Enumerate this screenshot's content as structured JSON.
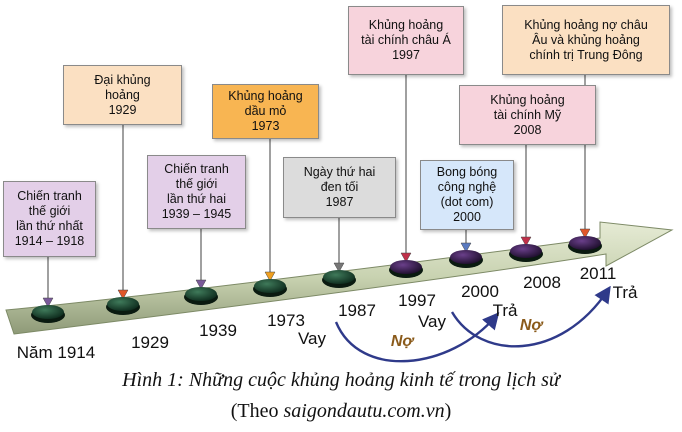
{
  "colors": {
    "purple": "#e3cfe8",
    "peach": "#fbe0c2",
    "orange": "#f8b552",
    "gray": "#dcdcdc",
    "blue": "#d6e7fa",
    "pink": "#f7d3dc",
    "arrow": "#2f3a8a",
    "debt": "#8a5a1a"
  },
  "events": [
    {
      "lines": [
        "Chiến tranh",
        "thế giới",
        "lần thứ nhất",
        "1914 – 1918"
      ],
      "color": "purple",
      "axis_label": "Năm 1914"
    },
    {
      "lines": [
        "Đại khủng",
        "hoảng",
        "1929"
      ],
      "color": "peach",
      "axis_label": "1929"
    },
    {
      "lines": [
        "Chiến tranh",
        "thế giới",
        "lần thứ hai",
        "1939 – 1945"
      ],
      "color": "purple",
      "axis_label": "1939"
    },
    {
      "lines": [
        "Khủng hoảng",
        "dầu mỏ",
        "1973"
      ],
      "color": "orange",
      "axis_label": "1973"
    },
    {
      "lines": [
        "Ngày thứ hai",
        "đen tối",
        "1987"
      ],
      "color": "gray",
      "axis_label": "1987"
    },
    {
      "lines": [
        "Khủng hoảng",
        "tài chính châu Á",
        "1997"
      ],
      "color": "pink",
      "axis_label": "1997"
    },
    {
      "lines": [
        "Bong bóng",
        "công nghệ",
        "(dot com)",
        "2000"
      ],
      "color": "blue",
      "axis_label": "2000"
    },
    {
      "lines": [
        "Khủng hoảng",
        "tài chính Mỹ",
        "2008"
      ],
      "color": "pink",
      "axis_label": "2008"
    },
    {
      "lines": [
        "Khủng hoảng nợ châu",
        "Âu và khủng hoảng",
        "chính trị Trung Đông"
      ],
      "color": "peach",
      "axis_label": "2011"
    }
  ],
  "debt_cycle": [
    {
      "borrow": "Vay",
      "debt": "Nợ",
      "repay": "Trả"
    },
    {
      "borrow": "Vay",
      "debt": "Nợ",
      "repay": "Trả"
    }
  ],
  "caption": {
    "title": "Hình 1: Những cuộc khủng hoảng kinh tế trong lịch sử",
    "source_prefix": "(Theo ",
    "source_site": "saigondautu.com.vn",
    "source_suffix": ")"
  }
}
